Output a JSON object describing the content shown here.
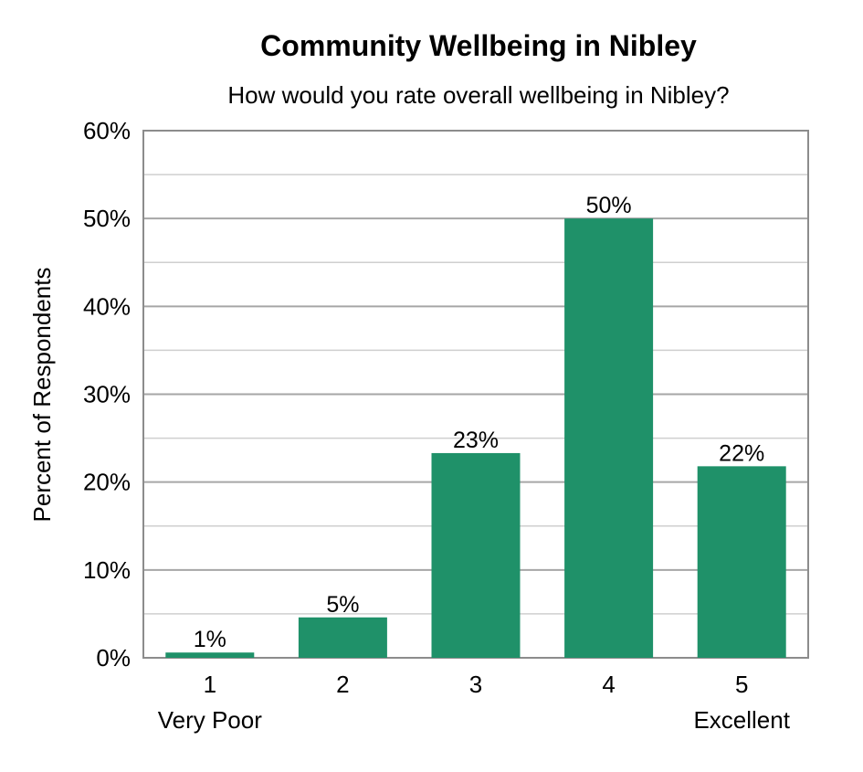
{
  "chart_data": {
    "type": "bar",
    "title": "Community Wellbeing in Nibley",
    "subtitle": "How would you rate overall wellbeing in Nibley?",
    "ylabel": "Percent of Respondents",
    "xlabel": "",
    "categories": [
      "1",
      "2",
      "3",
      "4",
      "5"
    ],
    "category_sublabels": [
      "Very Poor",
      "",
      "",
      "",
      "Excellent"
    ],
    "values": [
      0.6,
      4.6,
      23.3,
      50.0,
      21.8
    ],
    "data_labels": [
      "1%",
      "5%",
      "23%",
      "50%",
      "22%"
    ],
    "ylim": [
      0,
      60
    ],
    "y_ticks": [
      0,
      10,
      20,
      30,
      40,
      50,
      60
    ],
    "y_tick_labels": [
      "0%",
      "10%",
      "20%",
      "30%",
      "40%",
      "50%",
      "60%"
    ],
    "minor_gridlines": [
      5,
      15,
      25,
      35,
      45,
      55
    ],
    "grid": true,
    "legend": "none",
    "colors": {
      "bar": "#1f9169",
      "major_grid": "#a6a6a6",
      "minor_grid": "#cfcfcf",
      "axis": "#8c8c8c"
    }
  }
}
